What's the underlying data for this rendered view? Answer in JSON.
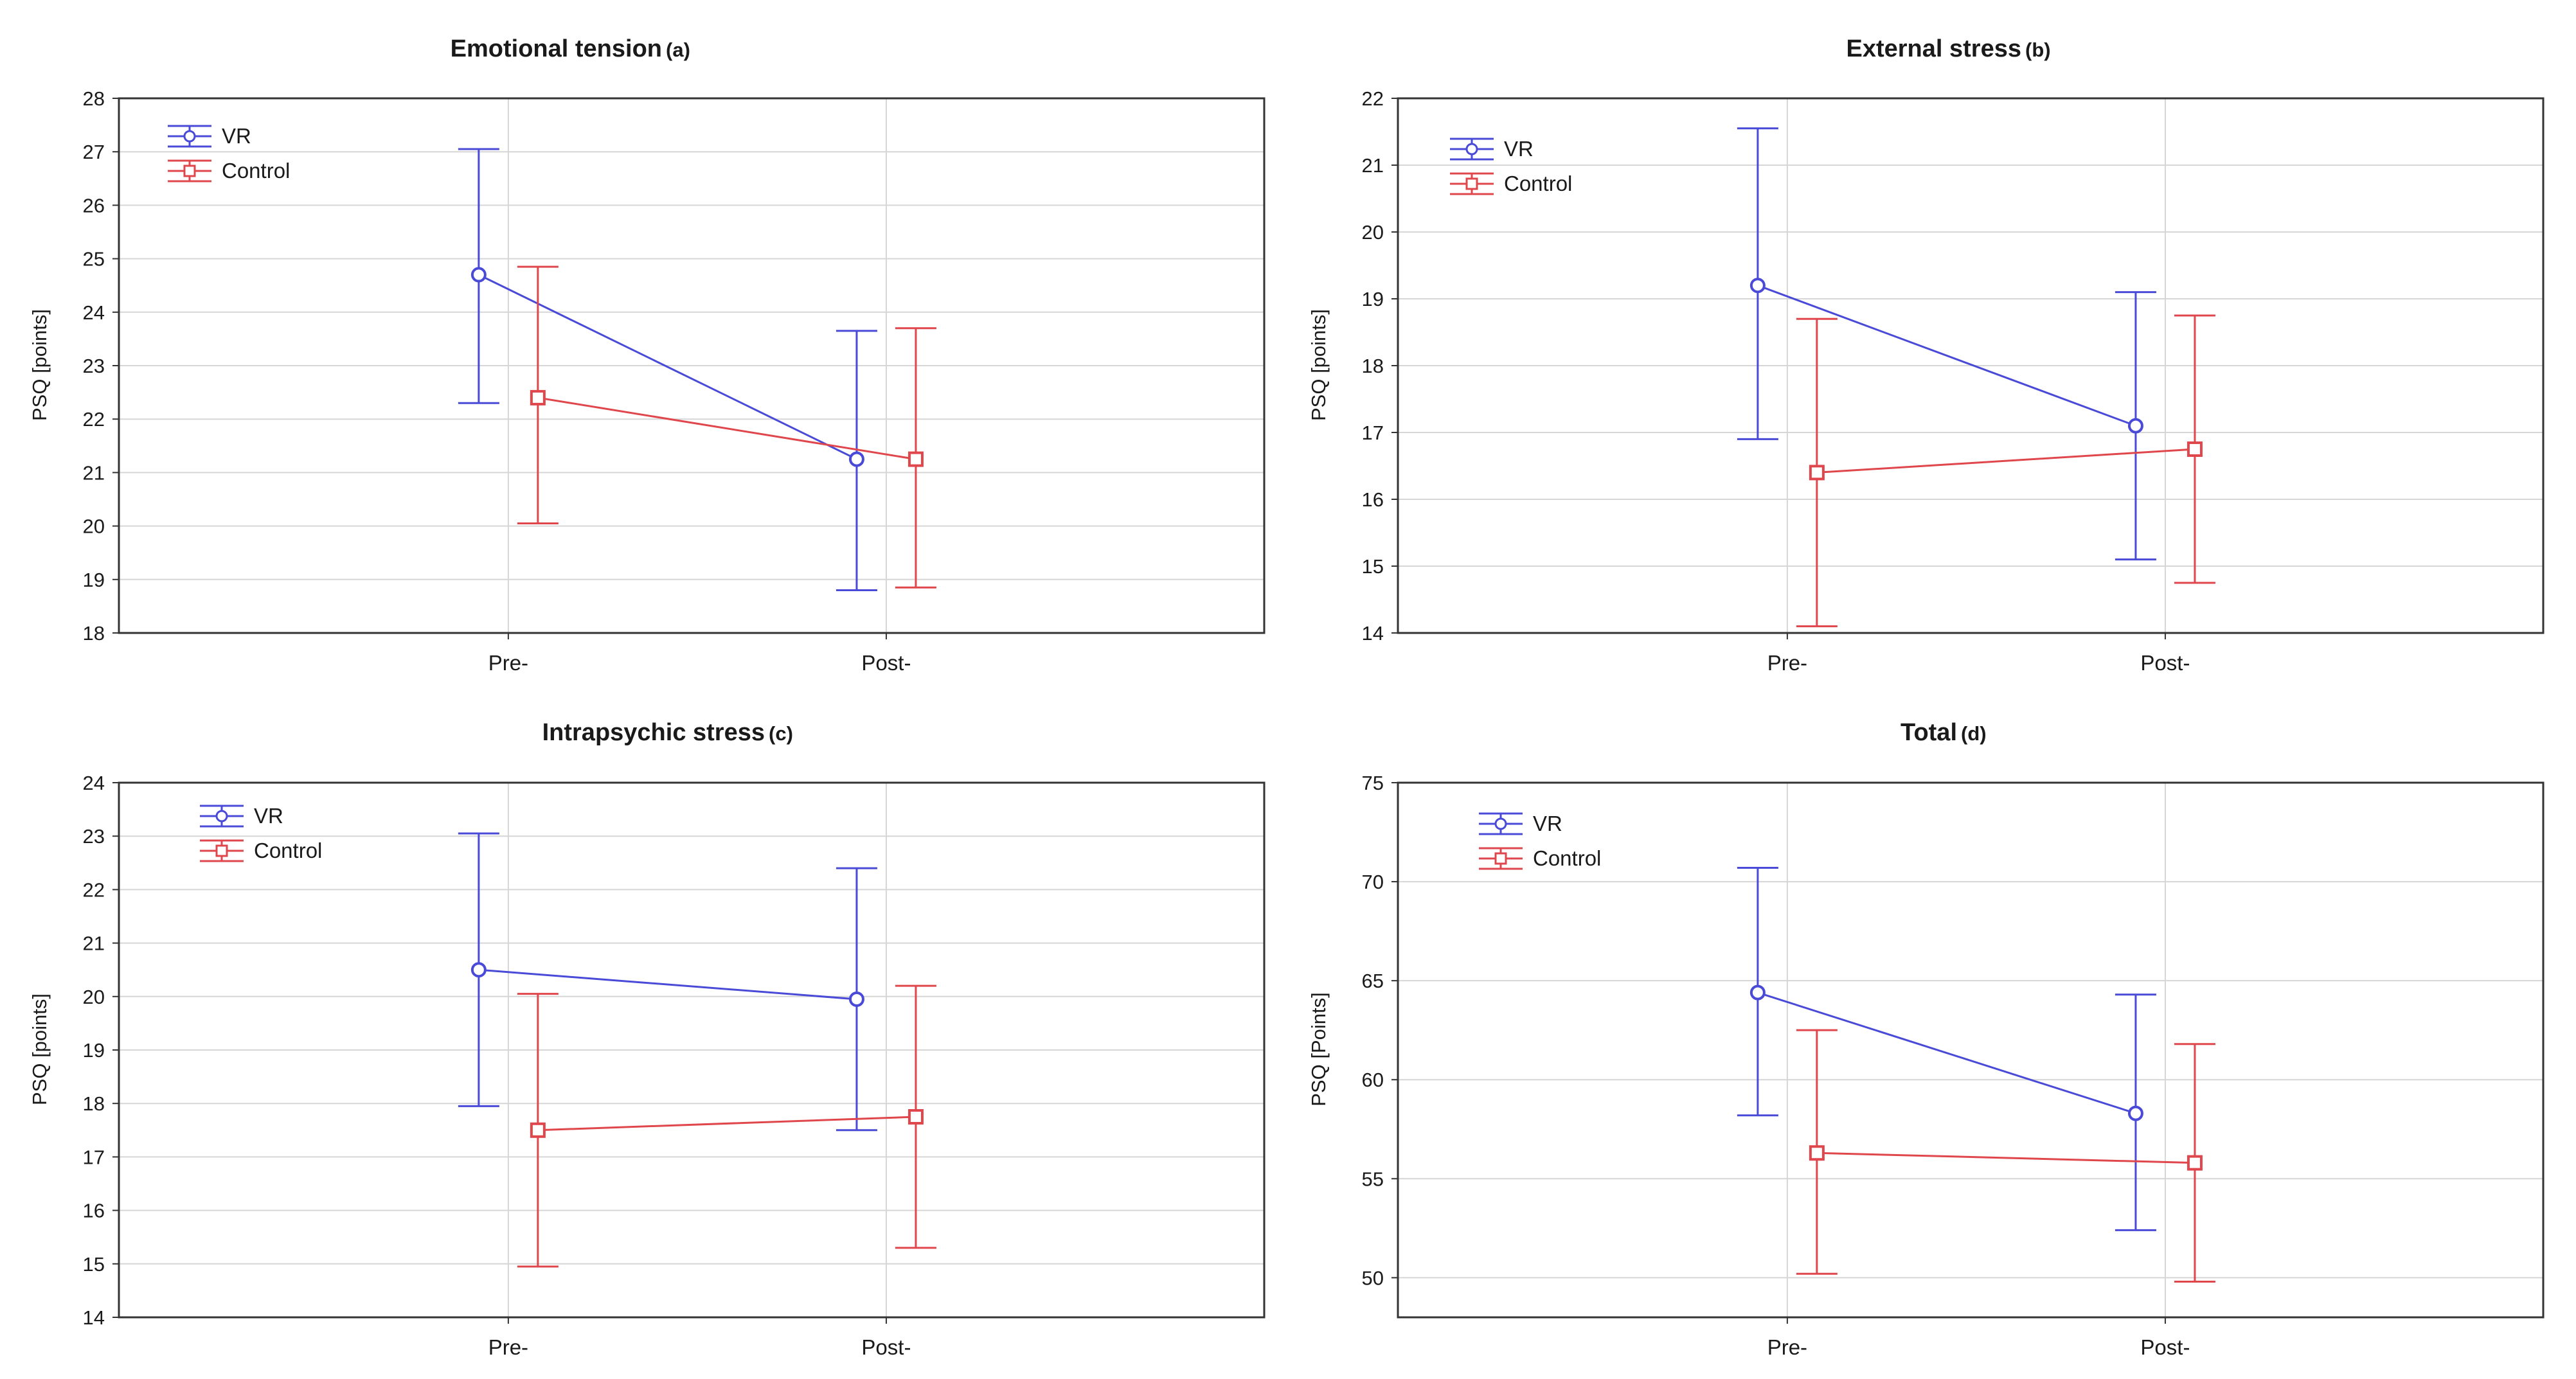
{
  "colors": {
    "vr": "#4a4ad8",
    "control": "#e0474c",
    "grid": "#d6d6d6",
    "axis": "#333333"
  },
  "chart_data": [
    {
      "type": "line",
      "title": "Emotional tension",
      "panel_label": "(a)",
      "ylabel": "PSQ [points]",
      "xlabel": "",
      "ylim": [
        18,
        28
      ],
      "yticks": [
        "18",
        "19",
        "20",
        "21",
        "22",
        "23",
        "24",
        "25",
        "26",
        "27",
        "28"
      ],
      "categories": [
        "Pre-",
        "Post-"
      ],
      "legend": [
        "VR",
        "Control"
      ],
      "series": [
        {
          "name": "VR",
          "values": [
            24.7,
            21.25
          ],
          "error_low": [
            22.3,
            18.8
          ],
          "error_high": [
            27.05,
            23.65
          ]
        },
        {
          "name": "Control",
          "values": [
            22.4,
            21.25
          ],
          "error_low": [
            20.05,
            18.85
          ],
          "error_high": [
            24.85,
            23.7
          ]
        }
      ]
    },
    {
      "type": "line",
      "title": "External stress",
      "panel_label": "(b)",
      "ylabel": "PSQ [points]",
      "xlabel": "",
      "ylim": [
        14,
        22
      ],
      "yticks": [
        "14",
        "15",
        "16",
        "17",
        "18",
        "19",
        "20",
        "21",
        "22"
      ],
      "categories": [
        "Pre-",
        "Post-"
      ],
      "legend": [
        "VR",
        "Control"
      ],
      "series": [
        {
          "name": "VR",
          "values": [
            19.2,
            17.1
          ],
          "error_low": [
            16.9,
            15.1
          ],
          "error_high": [
            21.55,
            19.1
          ]
        },
        {
          "name": "Control",
          "values": [
            16.4,
            16.75
          ],
          "error_low": [
            14.1,
            14.75
          ],
          "error_high": [
            18.7,
            18.75
          ]
        }
      ]
    },
    {
      "type": "line",
      "title": "Intrapsychic stress",
      "panel_label": "(c)",
      "ylabel": "PSQ [points]",
      "xlabel": "",
      "ylim": [
        14,
        24
      ],
      "yticks": [
        "14",
        "15",
        "16",
        "17",
        "18",
        "19",
        "20",
        "21",
        "22",
        "23",
        "24"
      ],
      "categories": [
        "Pre-",
        "Post-"
      ],
      "legend": [
        "VR",
        "Control"
      ],
      "series": [
        {
          "name": "VR",
          "values": [
            20.5,
            19.95
          ],
          "error_low": [
            17.95,
            17.5
          ],
          "error_high": [
            23.05,
            22.4
          ]
        },
        {
          "name": "Control",
          "values": [
            17.5,
            17.75
          ],
          "error_low": [
            14.95,
            15.3
          ],
          "error_high": [
            20.05,
            20.2
          ]
        }
      ]
    },
    {
      "type": "line",
      "title": "Total",
      "panel_label": "(d)",
      "ylabel": "PSQ [Points]",
      "xlabel": "",
      "ylim": [
        48,
        75
      ],
      "yticks": [
        "50",
        "55",
        "60",
        "65",
        "70",
        "75"
      ],
      "categories": [
        "Pre-",
        "Post-"
      ],
      "legend": [
        "VR",
        "Control"
      ],
      "series": [
        {
          "name": "VR",
          "values": [
            64.4,
            58.3
          ],
          "error_low": [
            58.2,
            52.4
          ],
          "error_high": [
            70.7,
            64.3
          ]
        },
        {
          "name": "Control",
          "values": [
            56.3,
            55.8
          ],
          "error_low": [
            50.2,
            49.8
          ],
          "error_high": [
            62.5,
            61.8
          ]
        }
      ]
    }
  ]
}
